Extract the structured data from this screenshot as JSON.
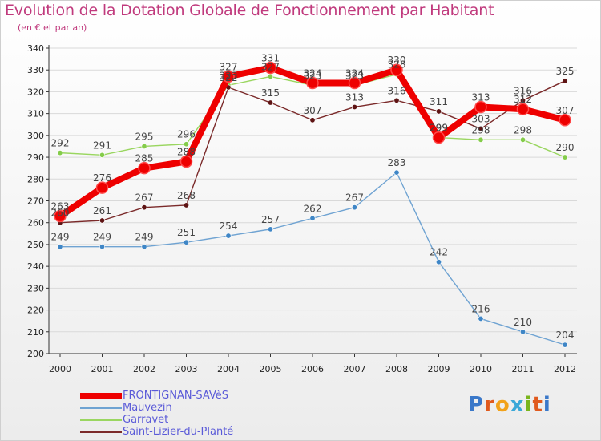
{
  "header": {
    "title": "Evolution de la Dotation Globale de Fonctionnement par Habitant",
    "subtitle": "(en € et par an)"
  },
  "logo": {
    "text": "Proxiti"
  },
  "colors": {
    "title": "#c03a7d",
    "legend_text": "#5a5ad8",
    "axis": "#333333",
    "grid": "#d9d9d9"
  },
  "chart_data": {
    "type": "line",
    "title": "Evolution de la Dotation Globale de Fonctionnement par Habitant",
    "subtitle": "(en € et par an)",
    "x": [
      "2000",
      "2001",
      "2002",
      "2003",
      "2004",
      "2005",
      "2006",
      "2007",
      "2008",
      "2009",
      "2010",
      "2011",
      "2012"
    ],
    "ylim": [
      200,
      340
    ],
    "y_ticks": [
      200,
      210,
      220,
      230,
      240,
      250,
      260,
      270,
      280,
      290,
      300,
      310,
      320,
      330,
      340
    ],
    "grid": "horizontal",
    "legend_position": "bottom-left",
    "series": [
      {
        "name": "FRONTIGNAN-SAVèS",
        "color": "#ee0000",
        "marker": "#ee0000",
        "emphasis": "thick",
        "values": [
          263,
          276,
          285,
          288,
          327,
          331,
          324,
          324,
          330,
          299,
          313,
          312,
          307
        ],
        "labels": [
          "263",
          "276",
          "285",
          "288",
          "327",
          "331",
          "324",
          "324",
          "330",
          "299",
          "313",
          "312",
          "307"
        ]
      },
      {
        "name": "Mauvezin",
        "color": "#6fa3d2",
        "marker": "#3f86c6",
        "emphasis": "thin",
        "values": [
          249,
          249,
          249,
          251,
          254,
          257,
          262,
          267,
          283,
          242,
          216,
          210,
          204
        ],
        "labels": [
          "249",
          "249",
          "249",
          "251",
          "254",
          "257",
          "262",
          "267",
          "283",
          "242",
          "216",
          "210",
          "204"
        ]
      },
      {
        "name": "Garravet",
        "color": "#9ad660",
        "marker": "#84cc4a",
        "emphasis": "thin",
        "values": [
          292,
          291,
          295,
          296,
          323,
          327,
          323,
          323,
          328,
          299,
          298,
          298,
          290
        ],
        "labels": [
          "292",
          "291",
          "295",
          "296",
          "323",
          "327",
          "323",
          "323",
          "328",
          "299",
          "298",
          "298",
          "290"
        ]
      },
      {
        "name": "Saint-Lizier-du-Planté",
        "color": "#7b2a2a",
        "marker": "#5e1414",
        "emphasis": "thin",
        "values": [
          260,
          261,
          267,
          268,
          322,
          315,
          307,
          313,
          316,
          311,
          303,
          316,
          325
        ],
        "labels": [
          "260",
          "261",
          "267",
          "268",
          "322",
          "315",
          "307",
          "313",
          "316",
          "311",
          "303",
          "316",
          "325"
        ]
      }
    ]
  }
}
